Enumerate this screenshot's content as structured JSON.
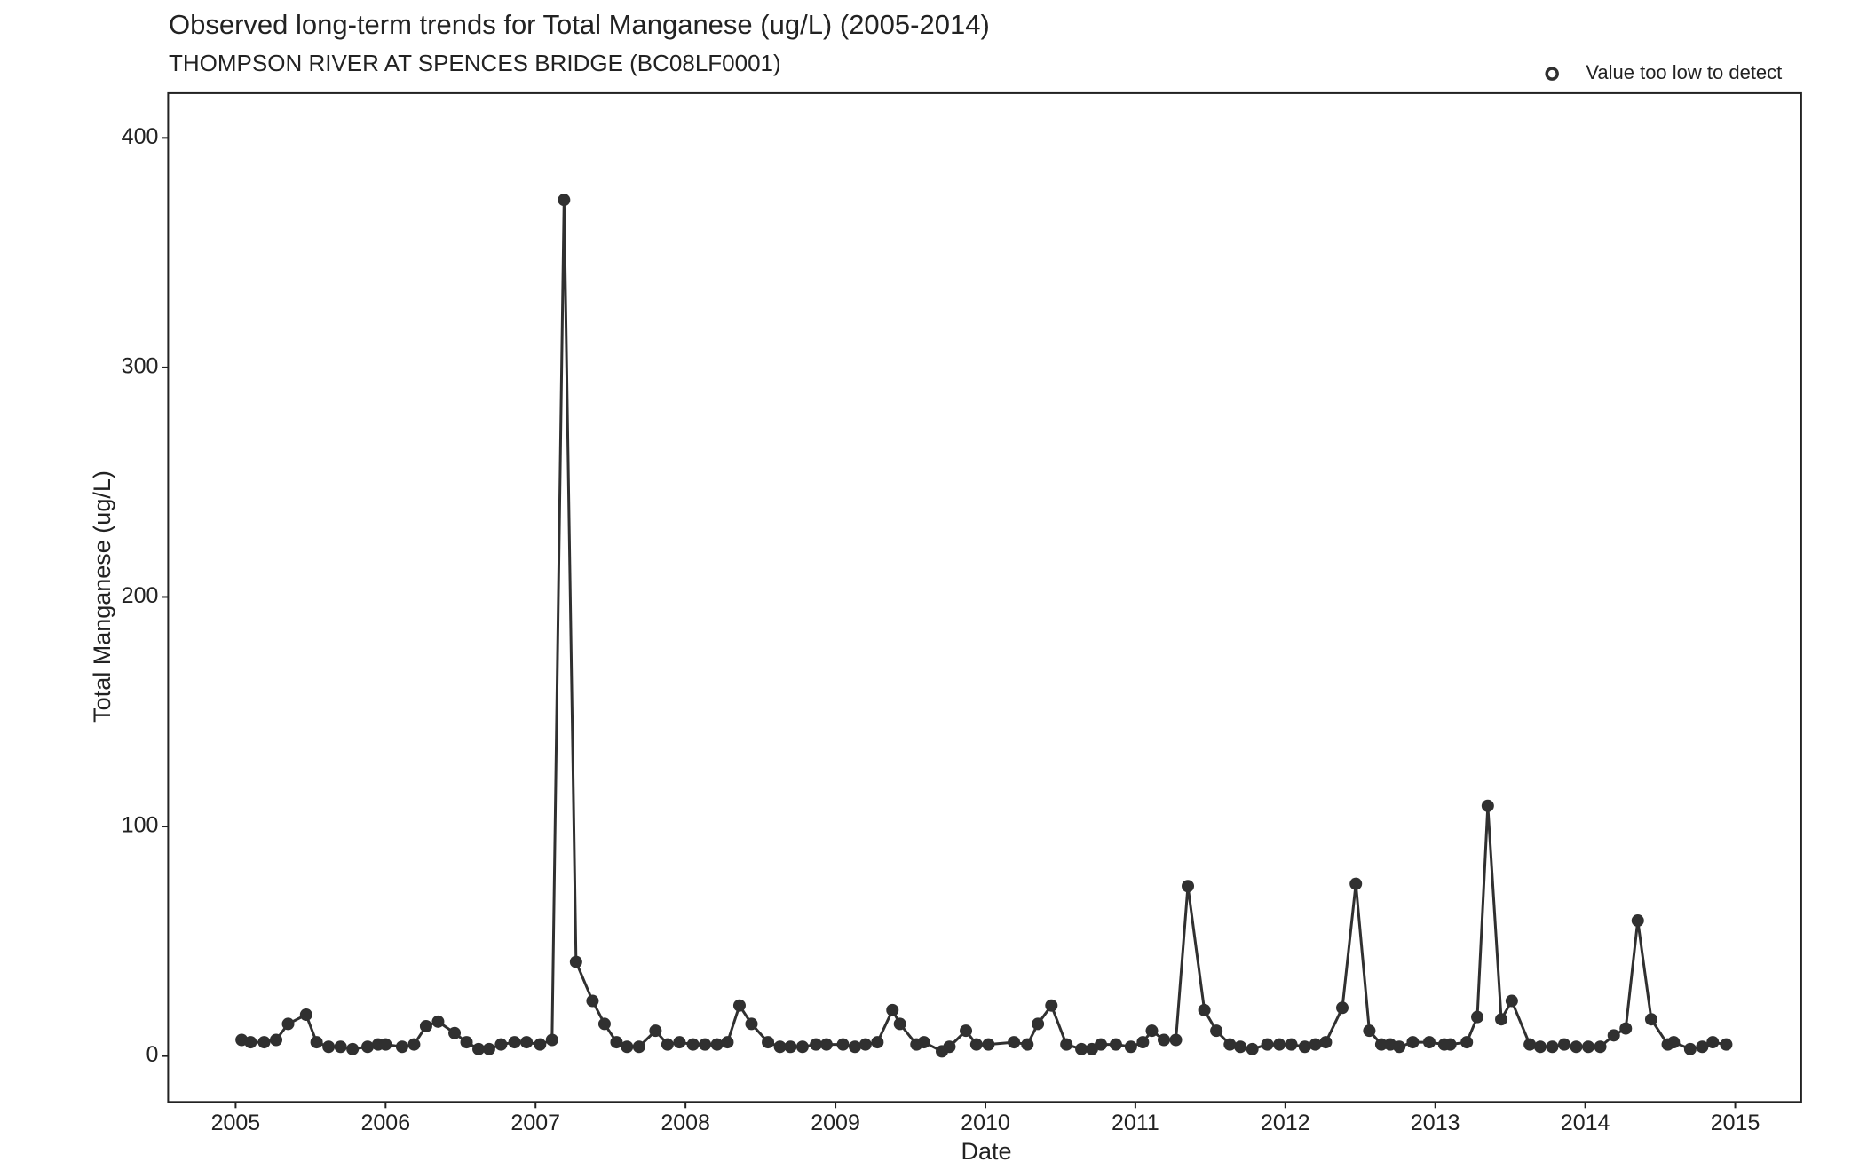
{
  "chart_data": {
    "type": "line",
    "title": "Observed long-term trends for Total Manganese (ug/L) (2005-2014)",
    "subtitle": "THOMPSON RIVER AT SPENCES BRIDGE (BC08LF0001)",
    "x_label": "Date",
    "y_label": "Total Manganese (ug/L)",
    "legend": {
      "label": "Value too low to detect",
      "marker": "open-circle",
      "position": "top-right"
    },
    "color": "#303030",
    "x": [
      2005.04,
      2005.1,
      2005.19,
      2005.27,
      2005.35,
      2005.47,
      2005.54,
      2005.62,
      2005.7,
      2005.78,
      2005.88,
      2005.95,
      2006.0,
      2006.11,
      2006.19,
      2006.27,
      2006.35,
      2006.46,
      2006.54,
      2006.62,
      2006.69,
      2006.77,
      2006.86,
      2006.94,
      2007.03,
      2007.11,
      2007.19,
      2007.27,
      2007.38,
      2007.46,
      2007.54,
      2007.61,
      2007.69,
      2007.8,
      2007.88,
      2007.96,
      2008.05,
      2008.13,
      2008.21,
      2008.28,
      2008.36,
      2008.44,
      2008.55,
      2008.63,
      2008.7,
      2008.78,
      2008.87,
      2008.94,
      2009.05,
      2009.13,
      2009.2,
      2009.28,
      2009.38,
      2009.43,
      2009.54,
      2009.59,
      2009.71,
      2009.76,
      2009.87,
      2009.94,
      2010.02,
      2010.19,
      2010.28,
      2010.35,
      2010.44,
      2010.54,
      2010.64,
      2010.71,
      2010.77,
      2010.87,
      2010.97,
      2011.05,
      2011.11,
      2011.19,
      2011.27,
      2011.35,
      2011.46,
      2011.54,
      2011.63,
      2011.7,
      2011.78,
      2011.88,
      2011.96,
      2012.04,
      2012.13,
      2012.2,
      2012.27,
      2012.38,
      2012.47,
      2012.56,
      2012.64,
      2012.7,
      2012.76,
      2012.85,
      2012.96,
      2013.06,
      2013.1,
      2013.21,
      2013.28,
      2013.35,
      2013.44,
      2013.51,
      2013.63,
      2013.7,
      2013.78,
      2013.86,
      2013.94,
      2014.02,
      2014.1,
      2014.19,
      2014.27,
      2014.35,
      2014.44,
      2014.55,
      2014.59,
      2014.7,
      2014.78,
      2014.85,
      2014.94
    ],
    "values": [
      7,
      6,
      6,
      7,
      14,
      18,
      6,
      4,
      4,
      3,
      4,
      5,
      5,
      4,
      5,
      13,
      15,
      10,
      6,
      3,
      3,
      5,
      6,
      6,
      5,
      7,
      373,
      41,
      24,
      14,
      6,
      4,
      4,
      11,
      5,
      6,
      5,
      5,
      5,
      6,
      22,
      14,
      6,
      4,
      4,
      4,
      5,
      5,
      5,
      4,
      5,
      6,
      20,
      14,
      5,
      6,
      2,
      4,
      11,
      5,
      5,
      6,
      5,
      14,
      22,
      5,
      3,
      3,
      5,
      5,
      4,
      6,
      11,
      7,
      7,
      74,
      20,
      11,
      5,
      4,
      3,
      5,
      5,
      5,
      4,
      5,
      6,
      21,
      75,
      11,
      5,
      5,
      4,
      6,
      6,
      5,
      5,
      6,
      17,
      109,
      16,
      24,
      5,
      4,
      4,
      5,
      4,
      4,
      4,
      9,
      12,
      59,
      16,
      5,
      6,
      3,
      4,
      6,
      5
    ],
    "xlim": [
      2004.55,
      2015.44
    ],
    "xticks": [
      2005,
      2006,
      2007,
      2008,
      2009,
      2010,
      2011,
      2012,
      2013,
      2014,
      2015
    ],
    "ylim": [
      -20,
      419.5
    ],
    "yticks": [
      0,
      100,
      200,
      300,
      400
    ],
    "grid": false
  }
}
